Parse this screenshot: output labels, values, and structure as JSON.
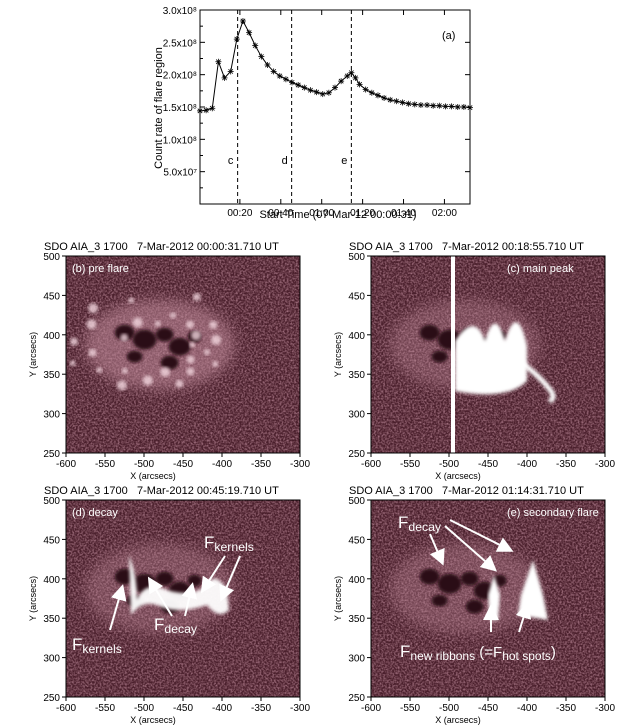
{
  "chart_data": {
    "type": "line",
    "ylabel": "Count rate of flare region",
    "xlabel": "Start Time (07-Mar-12 00:00:31)",
    "panel_label": "(a)",
    "ylim": [
      0,
      300000000.0
    ],
    "y_ticks": [
      "5.0x10⁷",
      "1.0x10⁸",
      "1.5x10⁸",
      "2.0x10⁸",
      "2.5x10⁸",
      "3.0x10⁸"
    ],
    "y_tick_values": [
      50000000.0,
      100000000.0,
      150000000.0,
      200000000.0,
      250000000.0,
      300000000.0
    ],
    "xlim_minutes": [
      0,
      132
    ],
    "x_ticks": [
      "00:20",
      "00:40",
      "01:00",
      "01:20",
      "01:40",
      "02:00"
    ],
    "x_tick_minutes": [
      19.5,
      39.5,
      59.5,
      79.5,
      99.5,
      119.5
    ],
    "markers": [
      {
        "label": "c",
        "minute": 18.4
      },
      {
        "label": "d",
        "minute": 44.8
      },
      {
        "label": "e",
        "minute": 74.0
      }
    ],
    "series": [
      {
        "marker": "asterisk",
        "x_minutes": [
          0,
          3,
          6,
          9,
          12,
          15,
          18,
          21,
          24,
          27,
          30,
          33,
          36,
          39,
          42,
          45,
          48,
          51,
          54,
          57,
          60,
          63,
          66,
          69,
          72,
          74,
          76,
          78,
          81,
          84,
          87,
          90,
          93,
          96,
          99,
          102,
          105,
          108,
          111,
          114,
          117,
          120,
          123,
          126,
          129,
          132
        ],
        "values": [
          144000000.0,
          145000000.0,
          148000000.0,
          220000000.0,
          195000000.0,
          205000000.0,
          255000000.0,
          283000000.0,
          265000000.0,
          245000000.0,
          228000000.0,
          215000000.0,
          205000000.0,
          198000000.0,
          193000000.0,
          188000000.0,
          184000000.0,
          180000000.0,
          176000000.0,
          173000000.0,
          170000000.0,
          172000000.0,
          180000000.0,
          190000000.0,
          198000000.0,
          203000000.0,
          195000000.0,
          185000000.0,
          177000000.0,
          172000000.0,
          168000000.0,
          164000000.0,
          161000000.0,
          159000000.0,
          157000000.0,
          155000000.0,
          154000000.0,
          153000000.0,
          153000000.0,
          152000000.0,
          152000000.0,
          151000000.0,
          151000000.0,
          150000000.0,
          150000000.0,
          149000000.0
        ]
      }
    ]
  },
  "panels": [
    {
      "header_instrument": "SDO AIA_3 1700",
      "header_time": "7-Mar-2012 00:00:31.710 UT",
      "label": "(b) pre flare"
    },
    {
      "header_instrument": "SDO AIA_3 1700",
      "header_time": "7-Mar-2012 00:18:55.710 UT",
      "label": "(c) main peak"
    },
    {
      "header_instrument": "SDO AIA_3 1700",
      "header_time": "7-Mar-2012 00:45:19.710 UT",
      "label": "(d) decay"
    },
    {
      "header_instrument": "SDO AIA_3 1700",
      "header_time": "7-Mar-2012 01:14:31.710 UT",
      "label": "(e) secondary flare"
    }
  ],
  "map_axes": {
    "xlabel": "X (arcsecs)",
    "ylabel": "Y (arcsecs)",
    "x_ticks": [
      "-600",
      "-550",
      "-500",
      "-450",
      "-400",
      "-350",
      "-300"
    ],
    "y_ticks": [
      "250",
      "300",
      "350",
      "400",
      "450",
      "500"
    ]
  },
  "annotations": {
    "d_kernels": "F",
    "d_kernels_sub": "kernels",
    "d_decay": "F",
    "d_decay_sub": "decay",
    "e_decay": "F",
    "e_decay_sub": "decay",
    "e_ribbons_main": "F",
    "e_ribbons_sub": "new ribbons",
    "e_hot_open": " (=F",
    "e_hot_sub": "hot spots",
    "e_hot_close": ")"
  },
  "colors": {
    "map_background": "#4a1f2c",
    "map_dark": "#2a0d16",
    "map_bright": "#ffffff",
    "line": "#000000"
  }
}
